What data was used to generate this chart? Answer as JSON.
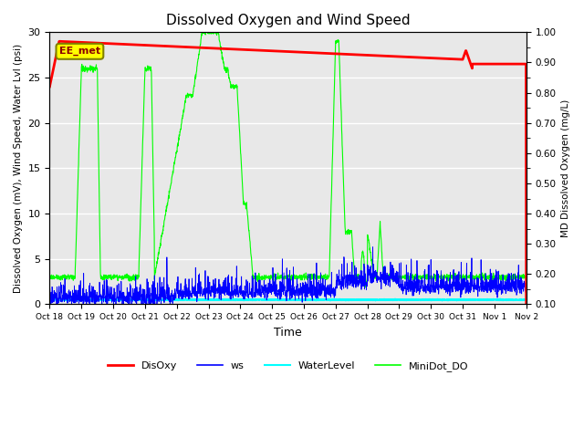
{
  "title": "Dissolved Oxygen and Wind Speed",
  "xlabel": "Time",
  "ylabel_left": "Dissolved Oxygen (mV), Wind Speed, Water Lvl (psi)",
  "ylabel_right": "MD Dissolved Oxygen (mg/L)",
  "ylim_left": [
    0,
    30
  ],
  "ylim_right": [
    0.1,
    1.0
  ],
  "annotation_text": "EE_met",
  "bg_color": "#e8e8e8",
  "xtick_labels": [
    "Oct 18",
    "Oct 19",
    "Oct 20",
    "Oct 21",
    "Oct 22",
    "Oct 23",
    "Oct 24",
    "Oct 25",
    "Oct 26",
    "Oct 27",
    "Oct 28",
    "Oct 29",
    "Oct 30",
    "Oct 31",
    "Nov 1",
    "Nov 2"
  ],
  "legend_labels": [
    "DisOxy",
    "ws",
    "WaterLevel",
    "MiniDot_DO"
  ],
  "legend_colors": [
    "red",
    "blue",
    "cyan",
    "lime"
  ]
}
